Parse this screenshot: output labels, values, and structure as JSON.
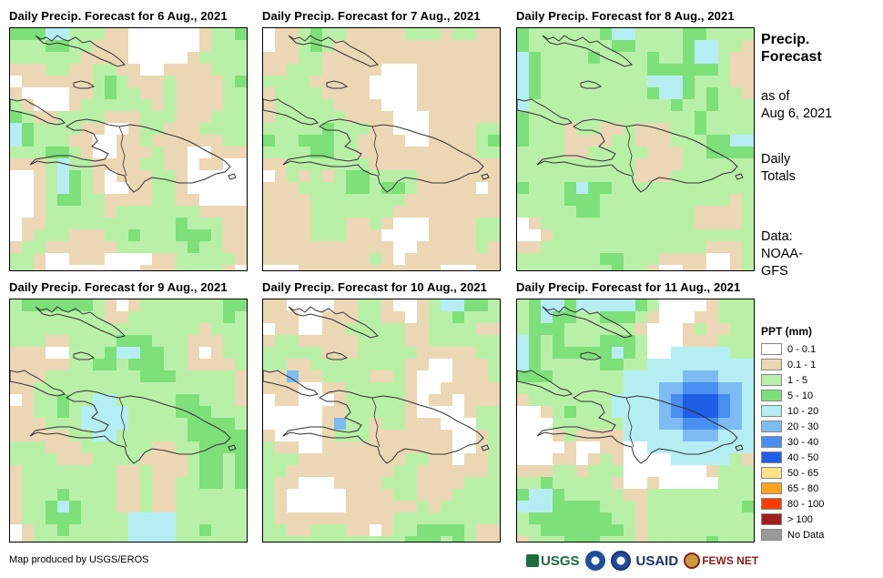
{
  "panels": [
    {
      "title": "Daily Precip. Forecast for 6 Aug., 2021",
      "seed": 11,
      "grid": "mixed_green_white"
    },
    {
      "title": "Daily Precip. Forecast for 7 Aug., 2021",
      "seed": 23,
      "grid": "mostly_tan"
    },
    {
      "title": "Daily Precip. Forecast for 8 Aug., 2021",
      "seed": 37,
      "grid": "mostly_green"
    },
    {
      "title": "Daily Precip. Forecast for 9 Aug., 2021",
      "seed": 41,
      "grid": "green_tan_blue"
    },
    {
      "title": "Daily Precip. Forecast for 10 Aug., 2021",
      "seed": 53,
      "grid": "mostly_green"
    },
    {
      "title": "Daily Precip. Forecast for 11 Aug., 2021",
      "seed": 67,
      "grid": "wet_east"
    }
  ],
  "side": {
    "title_line1": "Precip.",
    "title_line2": "Forecast",
    "asof_line1": "as of",
    "asof_line2": "Aug 6, 2021",
    "daily_line1": "Daily",
    "daily_line2": "Totals",
    "data_line1": "Data:",
    "data_line2": "NOAA-",
    "data_line3": "GFS"
  },
  "legend": {
    "title": "PPT (mm)",
    "items": [
      {
        "label": "0 - 0.1",
        "color": "#ffffff"
      },
      {
        "label": "0.1 - 1",
        "color": "#ecd7b4"
      },
      {
        "label": "1 - 5",
        "color": "#b9f0a8"
      },
      {
        "label": "5 - 10",
        "color": "#7ee07a"
      },
      {
        "label": "10 - 20",
        "color": "#b5eef2"
      },
      {
        "label": "20 - 30",
        "color": "#7dbbf2"
      },
      {
        "label": "30 - 40",
        "color": "#4a8ff0"
      },
      {
        "label": "40 - 50",
        "color": "#1e5fe6"
      },
      {
        "label": "50 - 65",
        "color": "#ffe28a"
      },
      {
        "label": "65 - 80",
        "color": "#ffa31a"
      },
      {
        "label": "80 - 100",
        "color": "#ff3c00"
      },
      {
        "label": "> 100",
        "color": "#a01e1e"
      },
      {
        "label": "No Data",
        "color": "#999999"
      }
    ]
  },
  "credit": "Map produced by USGS/EROS",
  "logos": {
    "usgs": "USGS",
    "usaid": "USAID",
    "fews": "FEWS NET",
    "noaa_icon": "noaa-logo-icon",
    "globe_icon": "fews-globe-icon"
  }
}
